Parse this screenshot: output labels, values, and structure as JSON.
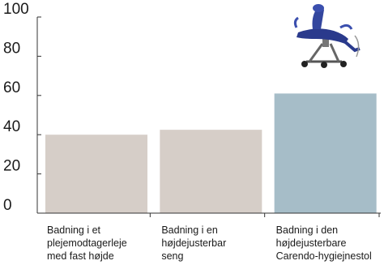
{
  "chart_data": {
    "type": "bar",
    "categories": [
      [
        "Badning i et",
        "plejemodtagerleje",
        "med fast højde"
      ],
      [
        "Badning i en",
        "højdejusterbar",
        "seng"
      ],
      [
        "Badning i den",
        "højdejusterbare",
        "Carendo-hygiejnestol"
      ]
    ],
    "values": [
      40,
      42.5,
      61
    ],
    "bar_colors": [
      "#d6cec8",
      "#d6cec8",
      "#a6bdc8"
    ],
    "ylim": [
      0,
      100
    ],
    "yticks": [
      0,
      20,
      40,
      60,
      80,
      100
    ],
    "title": "",
    "xlabel": "",
    "ylabel": "",
    "grid": false,
    "legend": "none",
    "image_icon": "carendo-hygiene-chair-image"
  }
}
